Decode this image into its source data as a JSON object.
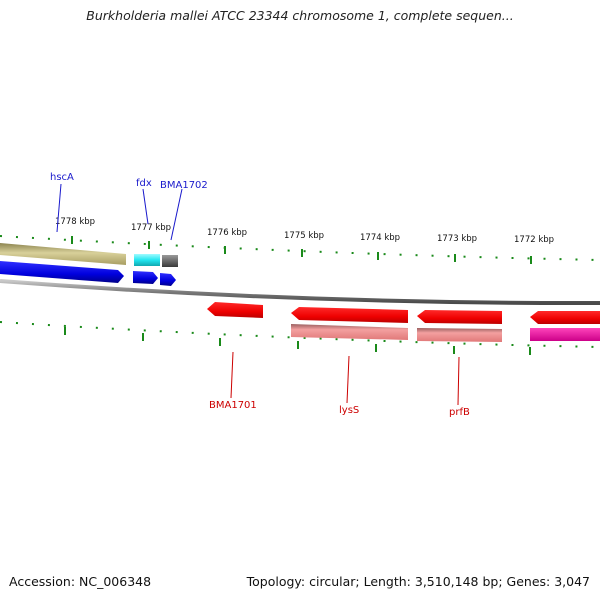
{
  "header": {
    "title": "Burkholderia mallei ATCC 23344 chromosome 1, complete sequen..."
  },
  "footer": {
    "accession": "Accession: NC_006348",
    "summary": "Topology: circular; Length: 3,510,148 bp; Genes: 3,047"
  },
  "ruler": {
    "ticks": [
      "1778 kbp",
      "1777 kbp",
      "1776 kbp",
      "1775 kbp",
      "1774 kbp",
      "1773 kbp",
      "1772 kbp"
    ]
  },
  "genes_forward": [
    {
      "label": "hscA"
    },
    {
      "label": "fdx"
    },
    {
      "label": "BMA1702"
    }
  ],
  "genes_reverse": [
    {
      "label": "BMA1701"
    },
    {
      "label": "lysS"
    },
    {
      "label": "prfB"
    }
  ],
  "colors": {
    "forward_labels": "#1a1acc",
    "reverse_labels": "#cc0000",
    "tick_marks": "#1a8a1a",
    "backbone": "#7a7a7a",
    "gene_blue": "#0a0ae0",
    "gene_red": "#ee0000",
    "gene_pink": "#e88a8a",
    "gene_olive": "#c8c088",
    "gene_cyan": "#22e6f0",
    "gene_grey": "#6a6a6a",
    "gene_magenta": "#dd1199"
  }
}
